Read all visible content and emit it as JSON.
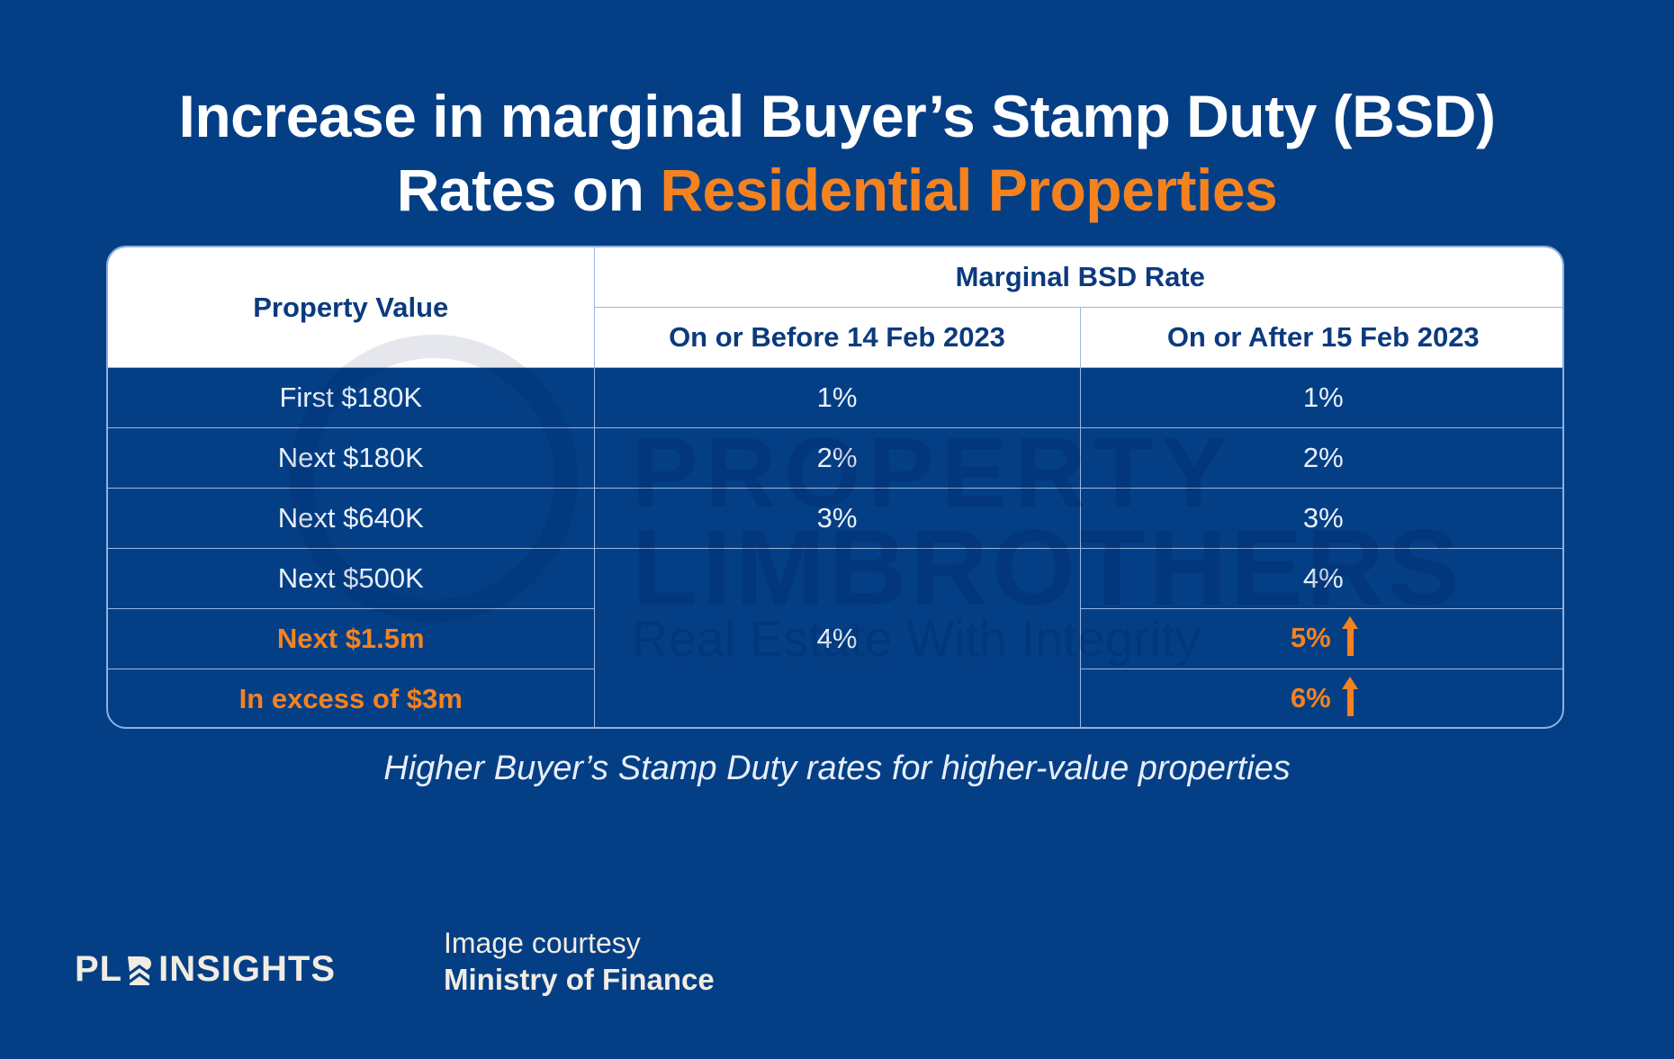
{
  "title": {
    "line1": "Increase in marginal Buyer’s Stamp Duty (BSD)",
    "line2_prefix": "Rates on ",
    "line2_accent": "Residential Properties"
  },
  "colors": {
    "background": "#043f86",
    "accent": "#f5821f",
    "header_text": "#0b3a7e"
  },
  "table": {
    "header": {
      "property_value": "Property Value",
      "group": "Marginal BSD Rate",
      "before": "On or Before 14 Feb 2023",
      "after": "On or After 15 Feb 2023"
    },
    "rows": [
      {
        "property_value": "First $180K",
        "before": "1%",
        "after": "1%",
        "highlight": false
      },
      {
        "property_value": "Next $180K",
        "before": "2%",
        "after": "2%",
        "highlight": false
      },
      {
        "property_value": "Next $640K",
        "before": "3%",
        "after": "3%",
        "highlight": false
      },
      {
        "property_value": "Next $500K",
        "before": "4%",
        "after": "4%",
        "highlight": false
      },
      {
        "property_value": "Next $1.5m",
        "after": "5%",
        "highlight": true,
        "after_icon": "arrow-up-icon"
      },
      {
        "property_value": "In excess of $3m",
        "after": "6%",
        "highlight": true,
        "after_icon": "arrow-up-icon"
      }
    ]
  },
  "watermark": {
    "line1": "PROPERTY",
    "line2": "LIMBROTHERS",
    "line3": "Real Estate With Integrity"
  },
  "caption": "Higher Buyer’s Stamp Duty rates for higher-value properties",
  "footer": {
    "logo_text_left": "PL",
    "logo_text_right": "INSIGHTS",
    "credit_label": "Image courtesy",
    "credit_source": "Ministry of Finance"
  }
}
